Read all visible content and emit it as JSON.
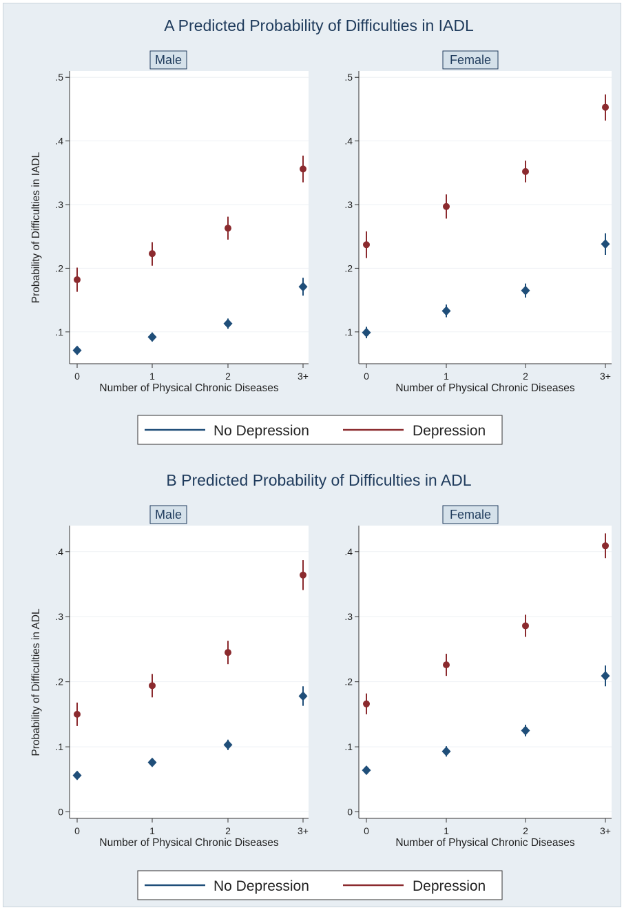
{
  "colors": {
    "no_depression": "#1f4e79",
    "depression": "#8b2a2e",
    "background": "#e8eef3",
    "plot_background": "#ffffff",
    "strip_background": "#d5e1ea",
    "gridline": "#eef1f4",
    "title": "#1f3b5c"
  },
  "chart_data": [
    {
      "type": "scatter",
      "panel_title": "A Predicted Probability of Difficulties in IADL",
      "facet": "Male",
      "xlabel": "Number of Physical Chronic Diseases",
      "ylabel": "Probability of Difficulties in IADL",
      "categories": [
        "0",
        "1",
        "2",
        "3+"
      ],
      "yticks": [
        ".1",
        ".2",
        ".3",
        ".4",
        ".5"
      ],
      "ylim": [
        0.05,
        0.51
      ],
      "grid": true,
      "series": [
        {
          "name": "No Depression",
          "marker": "diamond",
          "values": [
            0.071,
            0.092,
            0.113,
            0.171
          ],
          "ci_low": [
            0.065,
            0.085,
            0.105,
            0.157
          ],
          "ci_high": [
            0.077,
            0.099,
            0.121,
            0.185
          ]
        },
        {
          "name": "Depression",
          "marker": "circle",
          "values": [
            0.182,
            0.223,
            0.263,
            0.356
          ],
          "ci_low": [
            0.163,
            0.204,
            0.245,
            0.335
          ],
          "ci_high": [
            0.201,
            0.241,
            0.281,
            0.377
          ]
        }
      ]
    },
    {
      "type": "scatter",
      "panel_title": "A Predicted Probability of Difficulties in IADL",
      "facet": "Female",
      "xlabel": "Number of Physical Chronic Diseases",
      "ylabel": "",
      "categories": [
        "0",
        "1",
        "2",
        "3+"
      ],
      "yticks": [
        ".1",
        ".2",
        ".3",
        ".4",
        ".5"
      ],
      "ylim": [
        0.05,
        0.51
      ],
      "grid": true,
      "series": [
        {
          "name": "No Depression",
          "marker": "diamond",
          "values": [
            0.099,
            0.133,
            0.165,
            0.238
          ],
          "ci_low": [
            0.09,
            0.123,
            0.154,
            0.221
          ],
          "ci_high": [
            0.108,
            0.143,
            0.176,
            0.255
          ]
        },
        {
          "name": "Depression",
          "marker": "circle",
          "values": [
            0.237,
            0.297,
            0.352,
            0.453
          ],
          "ci_low": [
            0.216,
            0.278,
            0.335,
            0.432
          ],
          "ci_high": [
            0.258,
            0.316,
            0.369,
            0.473
          ]
        }
      ]
    },
    {
      "type": "scatter",
      "panel_title": "B Predicted Probability of Difficulties in ADL",
      "facet": "Male",
      "xlabel": "Number of Physical Chronic Diseases",
      "ylabel": "Probability of Difficulties in ADL",
      "categories": [
        "0",
        "1",
        "2",
        "3+"
      ],
      "yticks": [
        "0",
        ".1",
        ".2",
        ".3",
        ".4"
      ],
      "ylim": [
        -0.01,
        0.44
      ],
      "grid": true,
      "series": [
        {
          "name": "No Depression",
          "marker": "diamond",
          "values": [
            0.056,
            0.076,
            0.103,
            0.178
          ],
          "ci_low": [
            0.051,
            0.07,
            0.095,
            0.163
          ],
          "ci_high": [
            0.061,
            0.082,
            0.111,
            0.193
          ]
        },
        {
          "name": "Depression",
          "marker": "circle",
          "values": [
            0.15,
            0.194,
            0.245,
            0.364
          ],
          "ci_low": [
            0.132,
            0.176,
            0.227,
            0.341
          ],
          "ci_high": [
            0.168,
            0.212,
            0.263,
            0.387
          ]
        }
      ]
    },
    {
      "type": "scatter",
      "panel_title": "B Predicted Probability of Difficulties in ADL",
      "facet": "Female",
      "xlabel": "Number of Physical Chronic Diseases",
      "ylabel": "",
      "categories": [
        "0",
        "1",
        "2",
        "3+"
      ],
      "yticks": [
        "0",
        ".1",
        ".2",
        ".3",
        ".4"
      ],
      "ylim": [
        -0.01,
        0.44
      ],
      "grid": true,
      "series": [
        {
          "name": "No Depression",
          "marker": "diamond",
          "values": [
            0.064,
            0.093,
            0.125,
            0.209
          ],
          "ci_low": [
            0.058,
            0.085,
            0.116,
            0.193
          ],
          "ci_high": [
            0.07,
            0.101,
            0.134,
            0.225
          ]
        },
        {
          "name": "Depression",
          "marker": "circle",
          "values": [
            0.166,
            0.226,
            0.286,
            0.409
          ],
          "ci_low": [
            0.15,
            0.209,
            0.269,
            0.39
          ],
          "ci_high": [
            0.182,
            0.243,
            0.303,
            0.428
          ]
        }
      ]
    }
  ],
  "legend": {
    "items": [
      {
        "label": "No Depression",
        "color_key": "no_depression"
      },
      {
        "label": "Depression",
        "color_key": "depression"
      }
    ]
  }
}
